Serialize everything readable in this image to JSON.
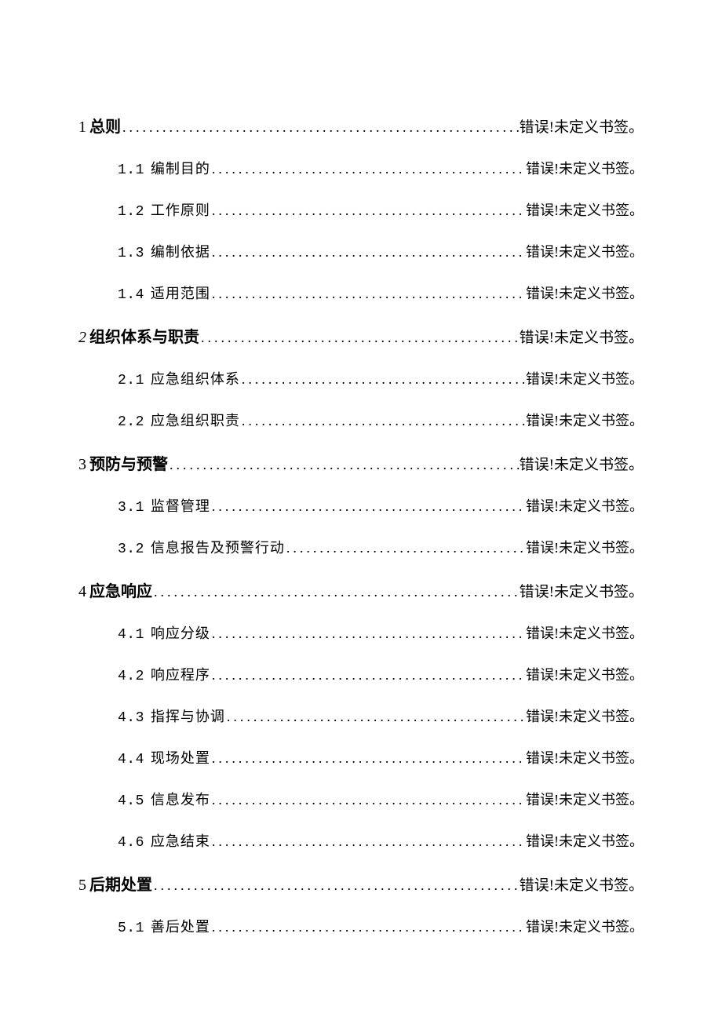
{
  "toc": {
    "error_text": "错误!未定义书签。",
    "leader_char": ".",
    "styles": {
      "text_color": "#000000",
      "background_color": "#ffffff",
      "level1_fontsize": 20,
      "level2_fontsize": 18,
      "level2_indent": 50,
      "line_spacing": 27,
      "level1_title_bold": true,
      "level2_number_font": "Courier New"
    },
    "entries": [
      {
        "level": 1,
        "number": "1",
        "title": "总则",
        "italic_number": false
      },
      {
        "level": 2,
        "number": "1.1",
        "title": "编制目的"
      },
      {
        "level": 2,
        "number": "1.2",
        "title": "工作原则"
      },
      {
        "level": 2,
        "number": "1.3",
        "title": "编制依据"
      },
      {
        "level": 2,
        "number": "1.4",
        "title": "适用范围"
      },
      {
        "level": 1,
        "number": "2",
        "title": "组织体系与职责",
        "italic_number": true
      },
      {
        "level": 2,
        "number": "2.1",
        "title": "应急组织体系"
      },
      {
        "level": 2,
        "number": "2.2",
        "title": "应急组织职责"
      },
      {
        "level": 1,
        "number": "3",
        "title": "预防与预警",
        "italic_number": false
      },
      {
        "level": 2,
        "number": "3.1",
        "title": "监督管理"
      },
      {
        "level": 2,
        "number": "3.2",
        "title": "信息报告及预警行动"
      },
      {
        "level": 1,
        "number": "4",
        "title": "应急响应",
        "italic_number": false
      },
      {
        "level": 2,
        "number": "4.1",
        "title": "响应分级"
      },
      {
        "level": 2,
        "number": "4.2",
        "title": "响应程序"
      },
      {
        "level": 2,
        "number": "4.3",
        "title": "指挥与协调"
      },
      {
        "level": 2,
        "number": "4.4",
        "title": "现场处置"
      },
      {
        "level": 2,
        "number": "4.5",
        "title": "信息发布"
      },
      {
        "level": 2,
        "number": "4.6",
        "title": "应急结束"
      },
      {
        "level": 1,
        "number": "5",
        "title": "后期处置",
        "italic_number": false
      },
      {
        "level": 2,
        "number": "5.1",
        "title": "善后处置"
      }
    ]
  }
}
